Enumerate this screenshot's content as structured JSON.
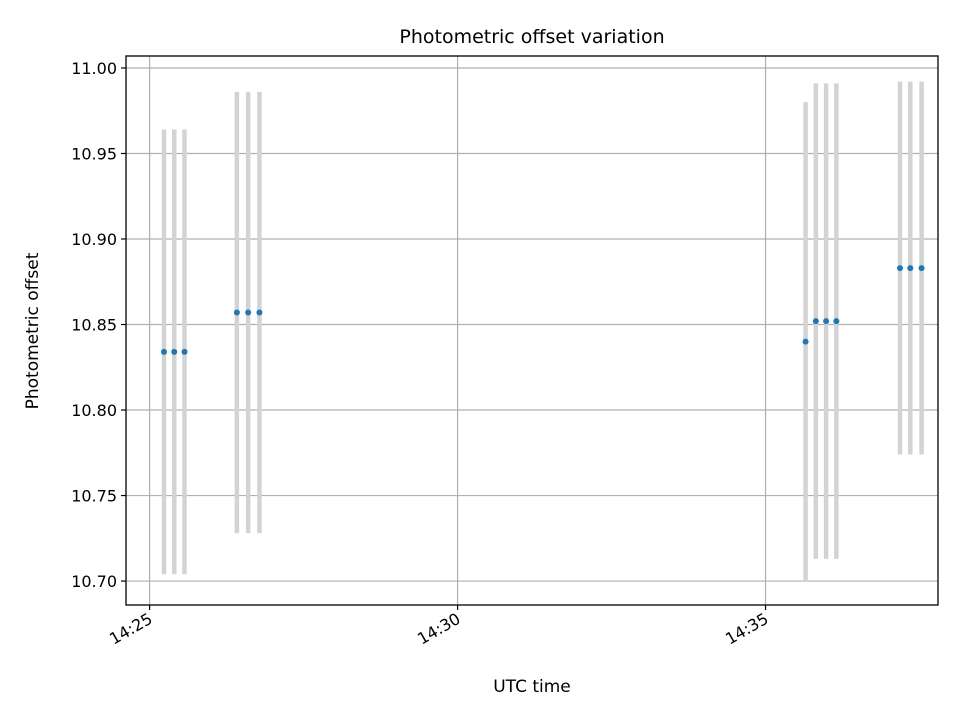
{
  "chart_data": {
    "type": "scatter",
    "title": "Photometric offset variation",
    "xlabel": "UTC time",
    "ylabel": "Photometric offset",
    "x_ticks": [
      "14:25",
      "14:30",
      "14:35"
    ],
    "y_ticks": [
      "10.70",
      "10.75",
      "10.80",
      "10.85",
      "10.90",
      "10.95",
      "11.00"
    ],
    "xlim": [
      "14:24:37",
      "14:37:48"
    ],
    "ylim": [
      10.686,
      11.007
    ],
    "grid": true,
    "legend": "none",
    "colors": {
      "point": "#1f77b4",
      "errorbar": "#d3d3d3"
    },
    "series": [
      {
        "points": [
          {
            "x": "14:25:14",
            "y": 10.834,
            "yerr_low": 10.704,
            "yerr_high": 10.964
          },
          {
            "x": "14:25:24",
            "y": 10.834,
            "yerr_low": 10.704,
            "yerr_high": 10.964
          },
          {
            "x": "14:25:34",
            "y": 10.834,
            "yerr_low": 10.704,
            "yerr_high": 10.964
          },
          {
            "x": "14:26:25",
            "y": 10.857,
            "yerr_low": 10.728,
            "yerr_high": 10.986
          },
          {
            "x": "14:26:36",
            "y": 10.857,
            "yerr_low": 10.728,
            "yerr_high": 10.986
          },
          {
            "x": "14:26:47",
            "y": 10.857,
            "yerr_low": 10.728,
            "yerr_high": 10.986
          },
          {
            "x": "14:35:39",
            "y": 10.84,
            "yerr_low": 10.7,
            "yerr_high": 10.98
          },
          {
            "x": "14:35:49",
            "y": 10.852,
            "yerr_low": 10.713,
            "yerr_high": 10.991
          },
          {
            "x": "14:35:59",
            "y": 10.852,
            "yerr_low": 10.713,
            "yerr_high": 10.991
          },
          {
            "x": "14:36:09",
            "y": 10.852,
            "yerr_low": 10.713,
            "yerr_high": 10.991
          },
          {
            "x": "14:37:11",
            "y": 10.883,
            "yerr_low": 10.774,
            "yerr_high": 10.992
          },
          {
            "x": "14:37:21",
            "y": 10.883,
            "yerr_low": 10.774,
            "yerr_high": 10.992
          },
          {
            "x": "14:37:32",
            "y": 10.883,
            "yerr_low": 10.774,
            "yerr_high": 10.992
          }
        ]
      }
    ]
  }
}
